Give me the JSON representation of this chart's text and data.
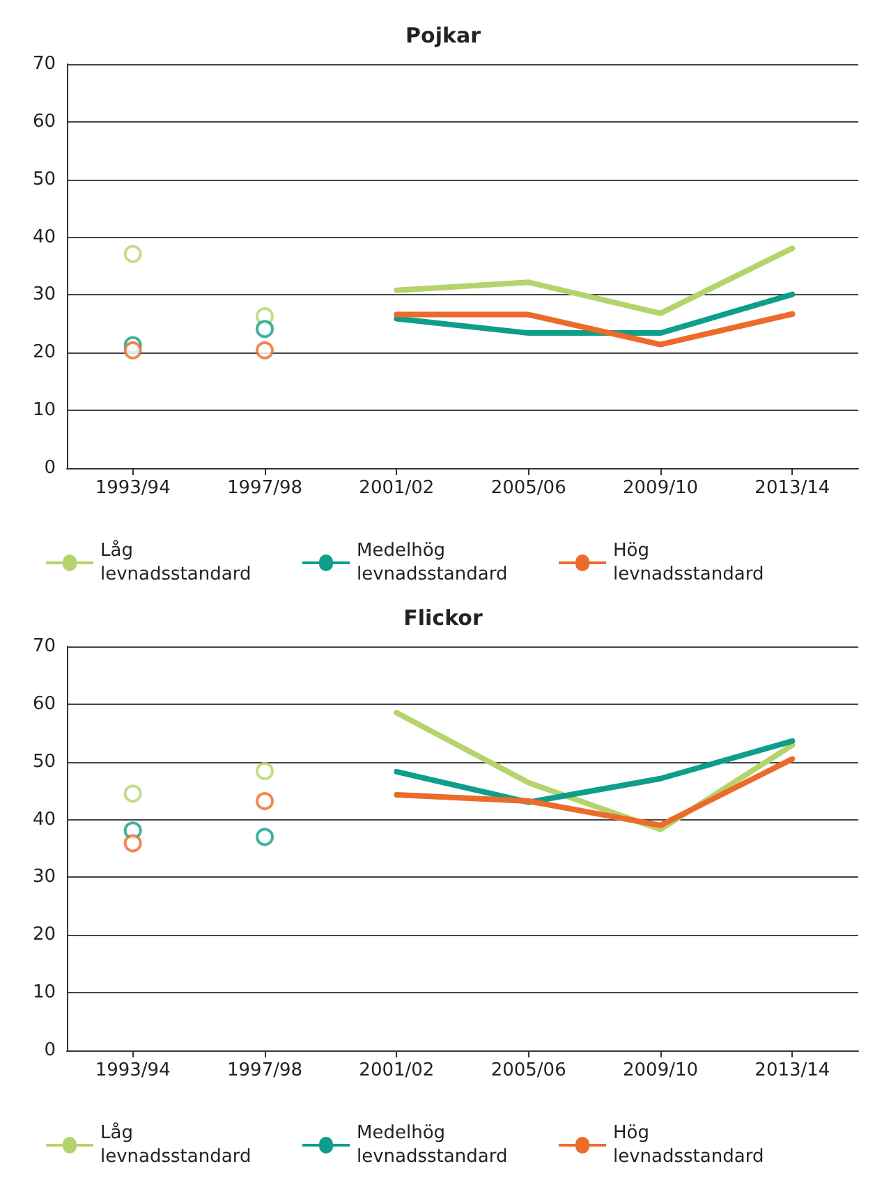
{
  "chart_data": [
    {
      "type": "line",
      "title": "Pojkar",
      "categories": [
        "1993/94",
        "1997/98",
        "2001/02",
        "2005/06",
        "2009/10",
        "2013/14"
      ],
      "ylim": [
        0,
        70
      ],
      "yticks": [
        0,
        10,
        20,
        30,
        40,
        50,
        60,
        70
      ],
      "grid": "y",
      "legend": "bottom",
      "series": [
        {
          "name": "Låg levnadsstandard",
          "color": "#b5d36b",
          "marker": "none",
          "values": [
            null,
            null,
            30.8,
            32.2,
            26.8,
            38.1
          ]
        },
        {
          "name": "Medelhög levnadsstandard",
          "color": "#0e9e8a",
          "marker": "none",
          "values": [
            null,
            null,
            25.9,
            23.4,
            23.4,
            30.1
          ]
        },
        {
          "name": "Hög levnadsstandard",
          "color": "#ec6a2a",
          "marker": "none",
          "values": [
            null,
            null,
            26.6,
            26.6,
            21.4,
            26.7
          ]
        },
        {
          "type": "scatter",
          "color": "#b5d36b",
          "marker": "circle",
          "values": [
            37.1,
            26.3,
            null,
            null,
            null,
            null
          ]
        },
        {
          "type": "scatter",
          "color": "#0e9e8a",
          "marker": "circle",
          "values": [
            21.3,
            24.1,
            null,
            null,
            null,
            null
          ]
        },
        {
          "type": "scatter",
          "color": "#ec6a2a",
          "marker": "circle",
          "values": [
            20.4,
            20.4,
            null,
            null,
            null,
            null
          ]
        }
      ]
    },
    {
      "type": "line",
      "title": "Flickor",
      "categories": [
        "1993/94",
        "1997/98",
        "2001/02",
        "2005/06",
        "2009/10",
        "2013/14"
      ],
      "ylim": [
        0,
        70
      ],
      "yticks": [
        0,
        10,
        20,
        30,
        40,
        50,
        60,
        70
      ],
      "grid": "y",
      "legend": "bottom",
      "series": [
        {
          "name": "Låg levnadsstandard",
          "color": "#b5d36b",
          "marker": "none",
          "values": [
            null,
            null,
            58.5,
            46.4,
            38.3,
            52.9
          ]
        },
        {
          "name": "Medelhög levnadsstandard",
          "color": "#0e9e8a",
          "marker": "none",
          "values": [
            null,
            null,
            48.3,
            43.0,
            47.1,
            53.6
          ]
        },
        {
          "name": "Hög levnadsstandard",
          "color": "#ec6a2a",
          "marker": "none",
          "values": [
            null,
            null,
            44.3,
            43.2,
            39.0,
            50.5
          ]
        },
        {
          "type": "scatter",
          "color": "#b5d36b",
          "marker": "circle",
          "values": [
            44.5,
            48.4,
            null,
            null,
            null,
            null
          ]
        },
        {
          "type": "scatter",
          "color": "#0e9e8a",
          "marker": "circle",
          "values": [
            38.1,
            37.0,
            null,
            null,
            null,
            null
          ]
        },
        {
          "type": "scatter",
          "color": "#ec6a2a",
          "marker": "circle",
          "values": [
            35.9,
            43.2,
            null,
            null,
            null,
            null
          ]
        }
      ]
    }
  ]
}
